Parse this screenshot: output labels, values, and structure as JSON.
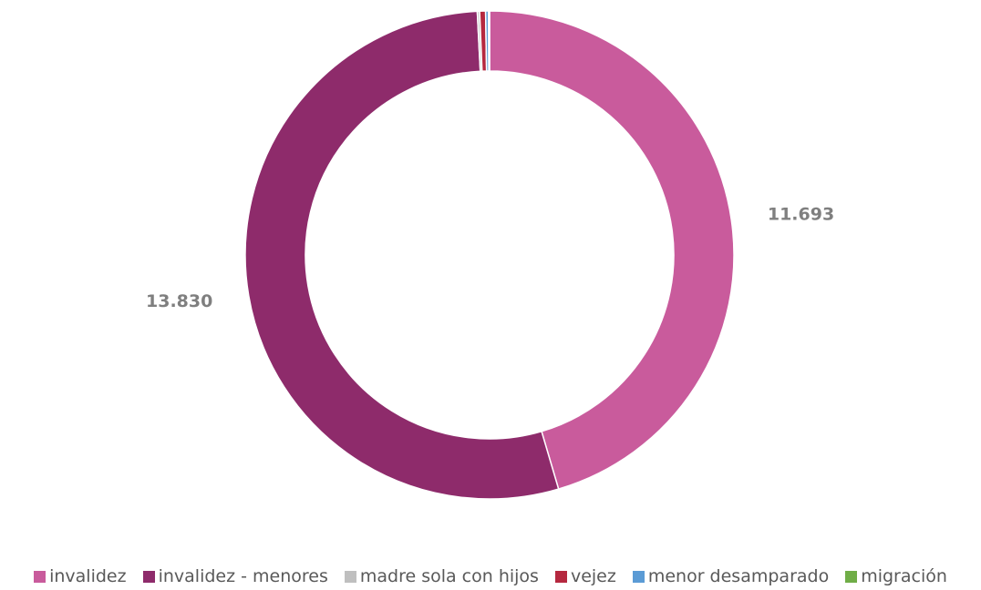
{
  "chart_data": {
    "type": "donut",
    "categories": [
      "invalidez",
      "invalidez - menores",
      "madre sola con hijos",
      "vejez",
      "menor desamparado",
      "migración"
    ],
    "values": [
      11693,
      13830,
      40,
      100,
      50,
      17
    ],
    "value_labels": [
      "11.693",
      "13.830",
      null,
      null,
      null,
      null
    ],
    "colors": [
      "#c95b9c",
      "#8e2b6b",
      "#bfbfbf",
      "#b5283f",
      "#5b9bd5",
      "#70ad47"
    ],
    "legend": "bottom"
  }
}
